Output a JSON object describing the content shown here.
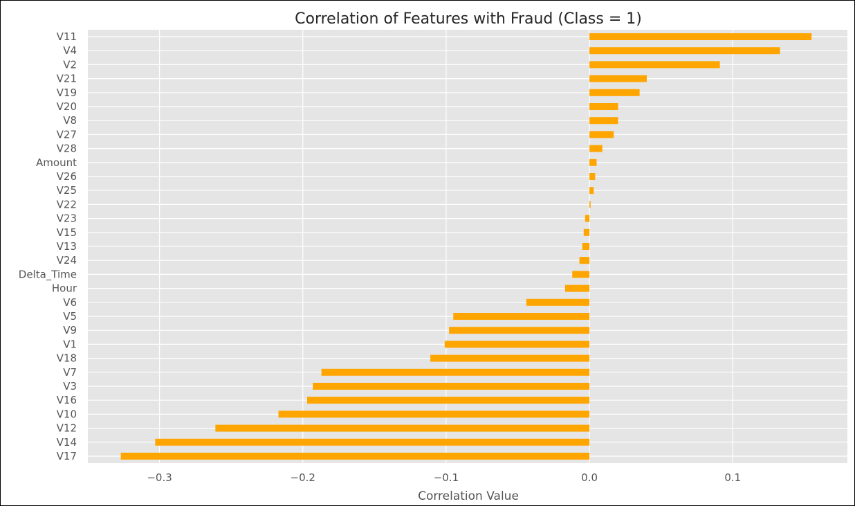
{
  "colors": {
    "bar": "#ffa500",
    "plot_background": "#e5e5e5",
    "grid": "#ffffff",
    "text": "#555555",
    "title": "#262626"
  },
  "chart_data": {
    "type": "bar",
    "orientation": "horizontal",
    "title": "Correlation of Features with Fraud (Class = 1)",
    "xlabel": "Correlation Value",
    "ylabel": "",
    "xlim": [
      -0.35,
      0.18
    ],
    "xticks": [
      -0.3,
      -0.2,
      -0.1,
      0.0,
      0.1
    ],
    "xtick_labels": [
      "−0.3",
      "−0.2",
      "−0.1",
      "0.0",
      "0.1"
    ],
    "grid": true,
    "categories": [
      "V11",
      "V4",
      "V2",
      "V21",
      "V19",
      "V20",
      "V8",
      "V27",
      "V28",
      "Amount",
      "V26",
      "V25",
      "V22",
      "V23",
      "V15",
      "V13",
      "V24",
      "Delta_Time",
      "Hour",
      "V6",
      "V5",
      "V9",
      "V1",
      "V18",
      "V7",
      "V3",
      "V16",
      "V10",
      "V12",
      "V14",
      "V17"
    ],
    "values": [
      0.155,
      0.133,
      0.091,
      0.04,
      0.035,
      0.02,
      0.02,
      0.017,
      0.009,
      0.005,
      0.004,
      0.003,
      0.0008,
      -0.003,
      -0.004,
      -0.005,
      -0.007,
      -0.012,
      -0.017,
      -0.044,
      -0.095,
      -0.098,
      -0.101,
      -0.111,
      -0.187,
      -0.193,
      -0.197,
      -0.217,
      -0.261,
      -0.303,
      -0.327
    ]
  }
}
